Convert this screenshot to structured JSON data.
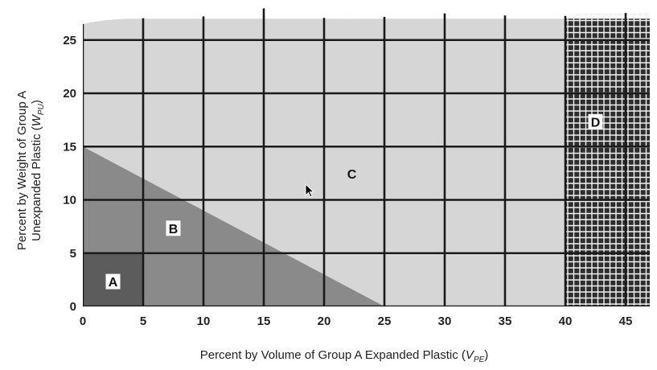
{
  "chart_data": {
    "type": "area",
    "xlabel": "Percent by Volume of Group A Expanded Plastic",
    "xlabel_var": "V",
    "xlabel_sub": "PE",
    "ylabel_line1": "Percent by Weight of Group A",
    "ylabel_line2": "Unexpanded Plastic",
    "ylabel_var": "W",
    "ylabel_sub": "PU",
    "xlim": [
      0,
      47.5
    ],
    "ylim": [
      0,
      27
    ],
    "x_ticks": [
      0,
      5,
      10,
      15,
      20,
      25,
      30,
      35,
      40,
      45
    ],
    "y_ticks": [
      0,
      5,
      10,
      15,
      20,
      25
    ],
    "x_tick_labels": [
      "0",
      "5",
      "10",
      "15",
      "20",
      "25",
      "30",
      "35",
      "40",
      "45"
    ],
    "y_tick_labels": [
      "0",
      "5",
      "10",
      "15",
      "20",
      "25"
    ],
    "grid": true,
    "regions": [
      {
        "name": "A",
        "label": "A",
        "label_at": [
          2.5,
          2.3
        ],
        "polygon": [
          [
            0,
            0
          ],
          [
            5,
            0
          ],
          [
            5,
            5
          ],
          [
            0,
            5
          ]
        ],
        "color": "#5c5c5c"
      },
      {
        "name": "B",
        "label": "B",
        "label_at": [
          7.5,
          7.3
        ],
        "polygon": [
          [
            0,
            0
          ],
          [
            25,
            0
          ],
          [
            0,
            15
          ]
        ],
        "color": "#8a8a8a"
      },
      {
        "name": "C",
        "label": "C",
        "label_at": [
          22.3,
          12.4
        ],
        "polygon": [
          [
            0,
            0
          ],
          [
            40,
            0
          ],
          [
            40,
            27
          ],
          [
            0,
            27
          ]
        ],
        "color": "#d6d6d6"
      },
      {
        "name": "D",
        "label": "D",
        "label_at": [
          42.5,
          17.3
        ],
        "polygon": [
          [
            40,
            0
          ],
          [
            47.5,
            0
          ],
          [
            47.5,
            27
          ],
          [
            40,
            27
          ]
        ],
        "color": "#2e2e2e"
      }
    ]
  }
}
